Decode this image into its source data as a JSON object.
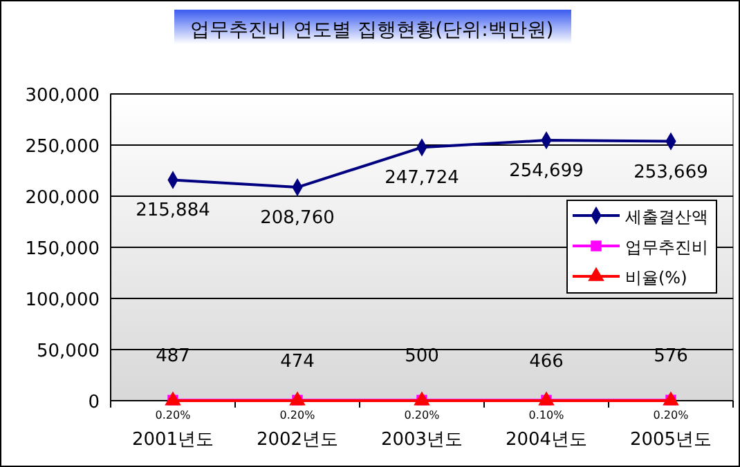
{
  "chart_data": {
    "type": "line",
    "title": "업무추진비 연도별 집행현황(단위:백만원)",
    "categories": [
      "2001년도",
      "2002년도",
      "2003년도",
      "2004년도",
      "2005년도"
    ],
    "series": [
      {
        "name": "세출결산액",
        "color": "#000080",
        "marker": "diamond",
        "values": [
          215884,
          208760,
          247724,
          254699,
          253669
        ],
        "value_labels": [
          "215,884",
          "208,760",
          "247,724",
          "254,699",
          "253,669"
        ]
      },
      {
        "name": "업무추진비",
        "color": "#ff00ff",
        "marker": "square",
        "values": [
          487,
          474,
          500,
          466,
          576
        ],
        "value_labels": [
          "487",
          "474",
          "500",
          "466",
          "576"
        ]
      },
      {
        "name": "비율(%)",
        "color": "#ff0000",
        "marker": "triangle",
        "values": [
          0.2,
          0.2,
          0.2,
          0.1,
          0.2
        ],
        "value_labels": [
          "0.20%",
          "0.20%",
          "0.20%",
          "0.10%",
          "0.20%"
        ]
      }
    ],
    "ylim": [
      0,
      300000
    ],
    "yticks": [
      {
        "value": 0,
        "label": "0"
      },
      {
        "value": 50000,
        "label": "50,000"
      },
      {
        "value": 100000,
        "label": "100,000"
      },
      {
        "value": 150000,
        "label": "150,000"
      },
      {
        "value": 200000,
        "label": "200,000"
      },
      {
        "value": 250000,
        "label": "250,000"
      },
      {
        "value": 300000,
        "label": "300,000"
      }
    ],
    "grid": "y",
    "legend": "right"
  }
}
